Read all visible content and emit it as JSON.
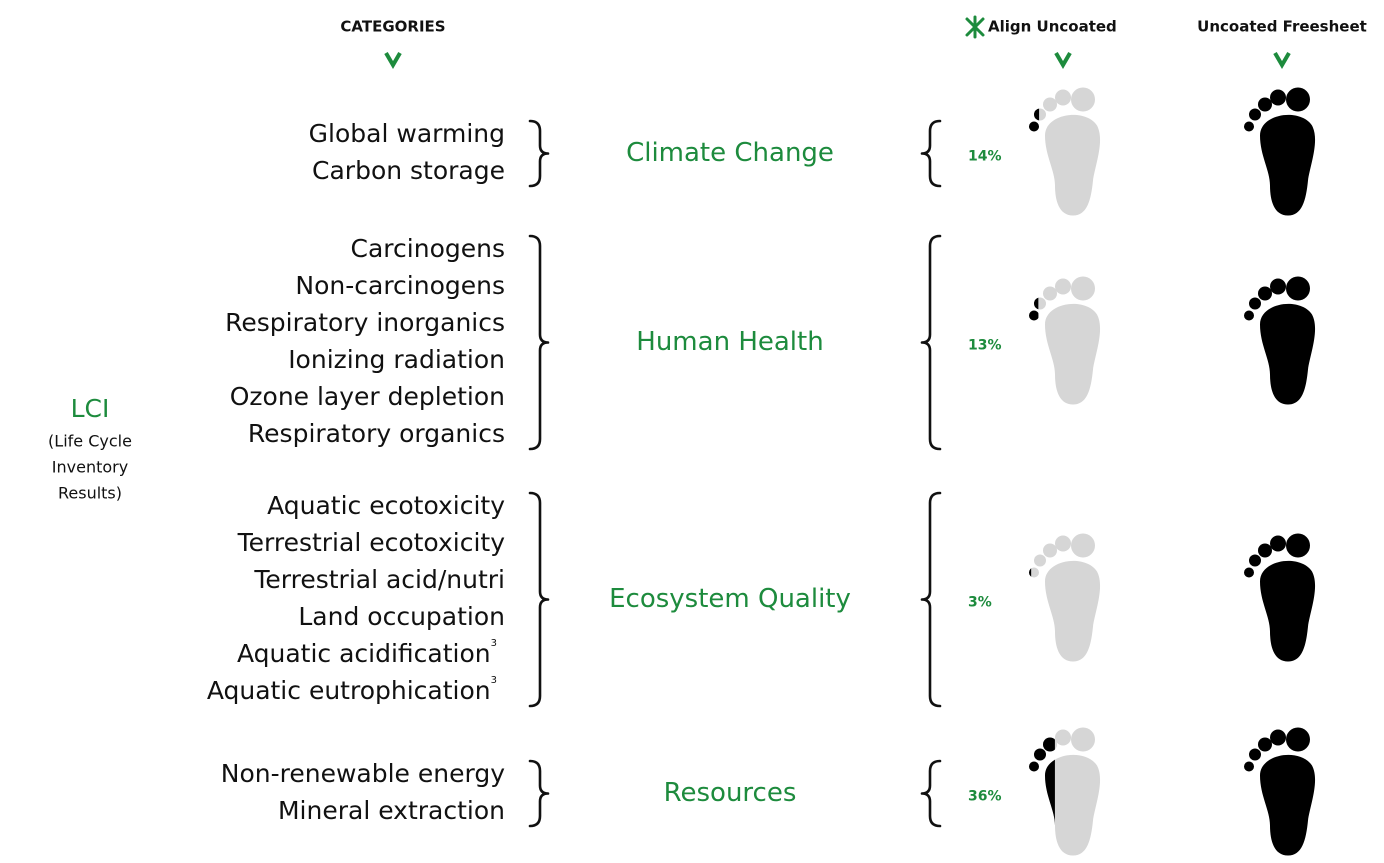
{
  "header": {
    "categories": "CATEGORIES",
    "align": "Align Uncoated",
    "uncoated": "Uncoated Freesheet"
  },
  "lci": {
    "title": "LCI",
    "subtitle": [
      "(Life Cycle",
      "Inventory",
      "Results)"
    ]
  },
  "groups": [
    {
      "name": "Climate Change",
      "items": [
        {
          "text": "Global warming"
        },
        {
          "text": "Carbon storage"
        }
      ],
      "percent": 14,
      "percent_label": "14%"
    },
    {
      "name": "Human Health",
      "items": [
        {
          "text": "Carcinogens"
        },
        {
          "text": "Non-carcinogens"
        },
        {
          "text": "Respiratory inorganics"
        },
        {
          "text": "Ionizing radiation"
        },
        {
          "text": "Ozone layer depletion"
        },
        {
          "text": "Respiratory organics"
        }
      ],
      "percent": 13,
      "percent_label": "13%"
    },
    {
      "name": "Ecosystem Quality",
      "items": [
        {
          "text": "Aquatic ecotoxicity"
        },
        {
          "text": "Terrestrial ecotoxicity"
        },
        {
          "text": "Terrestrial acid/nutri"
        },
        {
          "text": "Land occupation"
        },
        {
          "text": "Aquatic acidification",
          "note": "3"
        },
        {
          "text": "Aquatic eutrophication",
          "note": "3"
        }
      ],
      "percent": 3,
      "percent_label": "3%"
    },
    {
      "name": "Resources",
      "items": [
        {
          "text": "Non-renewable energy"
        },
        {
          "text": "Mineral extraction"
        }
      ],
      "percent": 36,
      "percent_label": "36%"
    }
  ]
}
